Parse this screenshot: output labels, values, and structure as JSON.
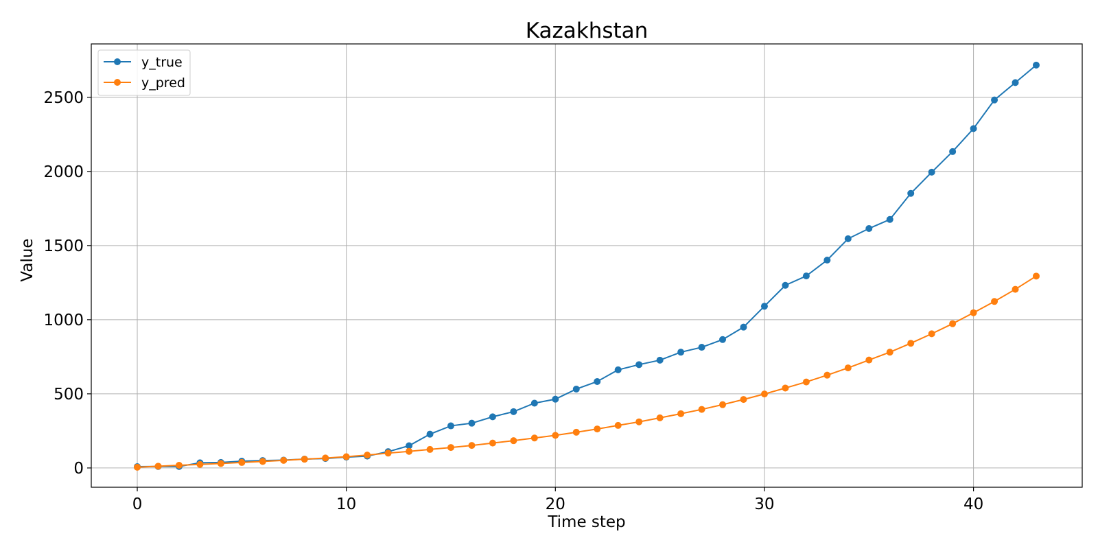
{
  "chart_data": {
    "type": "line",
    "title": "Kazakhstan",
    "xlabel": "Time step",
    "ylabel": "Value",
    "xlim": [
      -2.2,
      45.2
    ],
    "ylim": [
      -130,
      2860
    ],
    "xticks": [
      0,
      10,
      20,
      30,
      40
    ],
    "yticks": [
      0,
      500,
      1000,
      1500,
      2000,
      2500
    ],
    "grid": true,
    "legend_position": "top-left",
    "x": [
      0,
      1,
      2,
      3,
      4,
      5,
      6,
      7,
      8,
      9,
      10,
      11,
      12,
      13,
      14,
      15,
      16,
      17,
      18,
      19,
      20,
      21,
      22,
      23,
      24,
      25,
      26,
      27,
      28,
      29,
      30,
      31,
      32,
      33,
      34,
      35,
      36,
      37,
      38,
      39,
      40,
      41,
      42,
      43
    ],
    "series": [
      {
        "name": "y_true",
        "color": "#1f77b4",
        "values": [
          9,
          10,
          10,
          35,
          37,
          46,
          50,
          53,
          60,
          64,
          73,
          80,
          110,
          150,
          228,
          284,
          302,
          345,
          380,
          437,
          464,
          532,
          583,
          662,
          697,
          727,
          781,
          814,
          866,
          950,
          1091,
          1232,
          1295,
          1402,
          1546,
          1615,
          1676,
          1852,
          1995,
          2134,
          2289,
          2482,
          2599,
          2717
        ]
      },
      {
        "name": "y_pred",
        "color": "#ff7f0e",
        "values": [
          5,
          12,
          18,
          24,
          30,
          37,
          44,
          51,
          59,
          67,
          76,
          87,
          100,
          112,
          125,
          138,
          152,
          168,
          184,
          202,
          220,
          241,
          263,
          287,
          311,
          338,
          366,
          395,
          427,
          462,
          499,
          539,
          580,
          626,
          675,
          728,
          781,
          841,
          905,
          973,
          1047,
          1123,
          1205,
          1294
        ]
      }
    ]
  }
}
